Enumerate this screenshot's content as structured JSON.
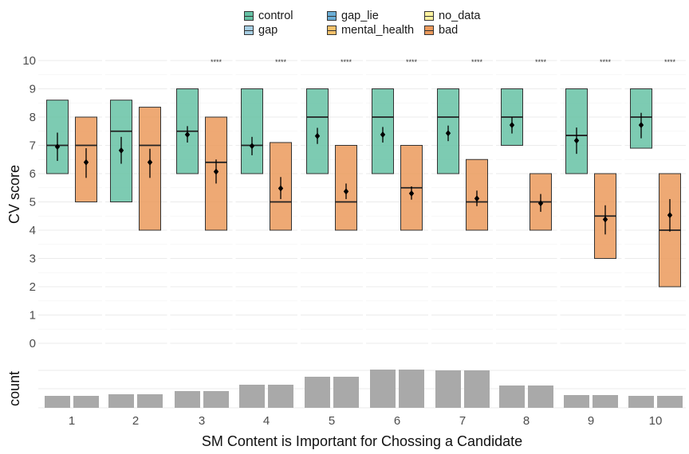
{
  "chart_data": {
    "type": "boxplot",
    "xlabel": "SM Content is Important for Chossing a Candidate",
    "ylabel": "CV score",
    "count_label": "count",
    "categories": [
      "1",
      "2",
      "3",
      "4",
      "5",
      "6",
      "7",
      "8",
      "9",
      "10"
    ],
    "ylim": [
      0,
      10
    ],
    "yticks": [
      "0",
      "1",
      "2",
      "3",
      "4",
      "5",
      "6",
      "7",
      "8",
      "9",
      "10"
    ],
    "legend": {
      "position": "top",
      "entries": [
        {
          "name": "control",
          "color": "#66c2a5"
        },
        {
          "name": "gap",
          "color": "#a6cee3"
        },
        {
          "name": "gap_lie",
          "color": "#6baed6"
        },
        {
          "name": "mental_health",
          "color": "#f6c26b"
        },
        {
          "name": "no_data",
          "color": "#fff3a0"
        },
        {
          "name": "bad",
          "color": "#eb9a5c"
        }
      ]
    },
    "significance": [
      "",
      "",
      "****",
      "****",
      "****",
      "****",
      "****",
      "****",
      "****",
      "****"
    ],
    "series": [
      {
        "name": "control",
        "color": "#66c2a5",
        "q1": [
          6,
          5,
          6,
          6,
          6,
          6,
          6,
          7,
          6,
          6.9
        ],
        "median": [
          7,
          7.5,
          7.5,
          7,
          8,
          8,
          8,
          8,
          7.35,
          8
        ],
        "q3": [
          8.6,
          8.6,
          9,
          9,
          9,
          9,
          9,
          9,
          9,
          9
        ],
        "mean": [
          6.95,
          6.82,
          7.38,
          6.98,
          7.33,
          7.38,
          7.43,
          7.72,
          7.17,
          7.72
        ],
        "ci_low": [
          6.45,
          6.35,
          7.1,
          6.65,
          7.05,
          7.1,
          7.15,
          7.42,
          6.7,
          7.25
        ],
        "ci_high": [
          7.45,
          7.3,
          7.68,
          7.3,
          7.62,
          7.65,
          7.7,
          8.0,
          7.63,
          8.15
        ],
        "count": [
          15,
          17,
          21,
          29,
          39,
          48,
          47,
          28,
          16,
          15
        ]
      },
      {
        "name": "bad",
        "color": "#eb9a5c",
        "q1": [
          5,
          4,
          4,
          4,
          4,
          4,
          4,
          4,
          3,
          2
        ],
        "median": [
          7,
          7,
          6.4,
          5,
          5,
          5.5,
          5,
          5,
          4.5,
          4
        ],
        "q3": [
          8,
          8.35,
          8,
          7.1,
          7,
          7,
          6.5,
          6,
          6,
          6
        ],
        "mean": [
          6.4,
          6.4,
          6.07,
          5.48,
          5.37,
          5.3,
          5.12,
          4.95,
          4.38,
          4.53
        ],
        "ci_low": [
          5.85,
          5.85,
          5.65,
          5.1,
          5.1,
          5.08,
          4.85,
          4.65,
          3.85,
          3.95
        ],
        "ci_high": [
          6.9,
          6.88,
          6.5,
          5.88,
          5.65,
          5.55,
          5.4,
          5.28,
          4.88,
          5.1
        ],
        "count": [
          15,
          17,
          21,
          29,
          39,
          48,
          47,
          28,
          16,
          15
        ]
      }
    ]
  }
}
